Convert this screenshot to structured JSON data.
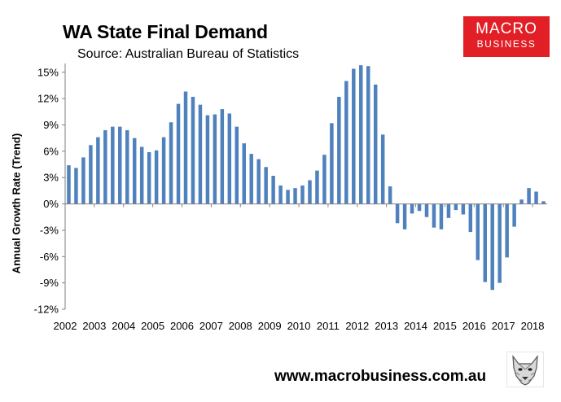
{
  "header": {
    "title": "WA State Final Demand",
    "source": "Source: Australian Bureau of Statistics"
  },
  "logo": {
    "line1": "MACRO",
    "line2": "BUSINESS",
    "bg_color": "#e21f26"
  },
  "footer": {
    "website": "www.macrobusiness.com.au",
    "mascot_icon": "wolf-head-icon"
  },
  "chart_data": {
    "type": "bar",
    "title": "WA State Final Demand",
    "subtitle": "Source: Australian Bureau of Statistics",
    "xlabel": "",
    "ylabel": "Annual Growth Rate (Trend)",
    "ylim": [
      -12,
      16
    ],
    "yticks": [
      15,
      12,
      9,
      6,
      3,
      0,
      -3,
      -6,
      -9,
      -12
    ],
    "ytick_labels": [
      "15%",
      "12%",
      "9%",
      "6%",
      "3%",
      "0%",
      "-3%",
      "-6%",
      "-9%",
      "-12%"
    ],
    "xtick_labels": [
      "2002",
      "2003",
      "2004",
      "2005",
      "2006",
      "2007",
      "2008",
      "2009",
      "2010",
      "2011",
      "2012",
      "2013",
      "2014",
      "2015",
      "2016",
      "2017",
      "2018"
    ],
    "bar_color": "#4f81bd",
    "series": [
      {
        "name": "Annual Growth Rate (Trend)",
        "values": [
          4.4,
          4.1,
          5.3,
          6.7,
          7.6,
          8.4,
          8.8,
          8.8,
          8.4,
          7.5,
          6.5,
          5.9,
          6.1,
          7.6,
          9.3,
          11.4,
          12.8,
          12.2,
          11.3,
          10.1,
          10.2,
          10.8,
          10.3,
          8.8,
          6.9,
          5.7,
          5.1,
          4.2,
          3.2,
          2.1,
          1.6,
          1.8,
          2.1,
          2.7,
          3.8,
          5.6,
          9.2,
          12.2,
          14.0,
          15.4,
          15.8,
          15.7,
          13.6,
          7.9,
          2.0,
          -2.2,
          -2.9,
          -1.1,
          -0.8,
          -1.5,
          -2.7,
          -2.9,
          -1.6,
          -0.7,
          -1.2,
          -3.2,
          -6.4,
          -8.9,
          -9.8,
          -9.0,
          -6.1,
          -2.6,
          0.5,
          1.8,
          1.4,
          0.3
        ]
      }
    ]
  }
}
